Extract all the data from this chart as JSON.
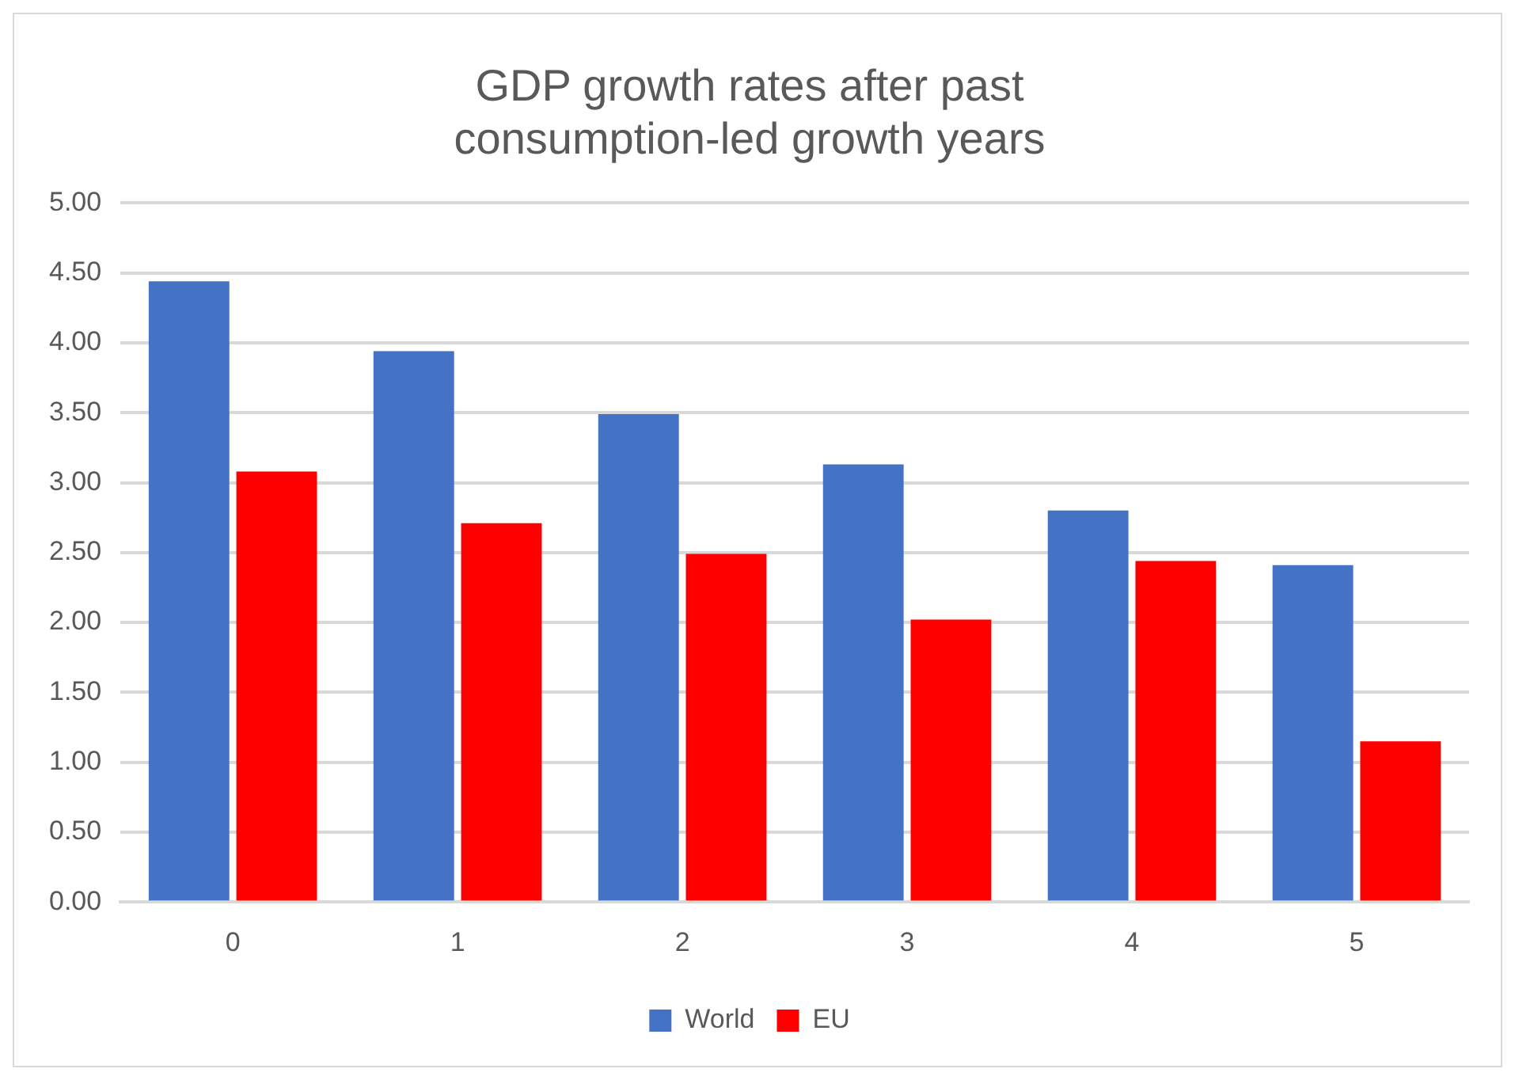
{
  "chart_data": {
    "type": "bar",
    "title": "GDP growth rates after past consumption-led growth years",
    "categories": [
      "0",
      "1",
      "2",
      "3",
      "4",
      "5"
    ],
    "series": [
      {
        "name": "World",
        "color": "#4472c4",
        "values": [
          4.44,
          3.94,
          3.49,
          3.13,
          2.8,
          2.41
        ]
      },
      {
        "name": "EU",
        "color": "#ff0000",
        "values": [
          3.08,
          2.71,
          2.49,
          2.02,
          2.44,
          1.15
        ]
      }
    ],
    "ylim": [
      0,
      5
    ],
    "yticks": [
      {
        "value": 0,
        "label": "0.00"
      },
      {
        "value": 0.5,
        "label": "0.50"
      },
      {
        "value": 1,
        "label": "1.00"
      },
      {
        "value": 1.5,
        "label": "1.50"
      },
      {
        "value": 2,
        "label": "2.00"
      },
      {
        "value": 2.5,
        "label": "2.50"
      },
      {
        "value": 3,
        "label": "3.00"
      },
      {
        "value": 3.5,
        "label": "3.50"
      },
      {
        "value": 4,
        "label": "4.00"
      },
      {
        "value": 4.5,
        "label": "4.50"
      },
      {
        "value": 5,
        "label": "5.00"
      }
    ],
    "grid": "y",
    "legend": "bottom"
  }
}
